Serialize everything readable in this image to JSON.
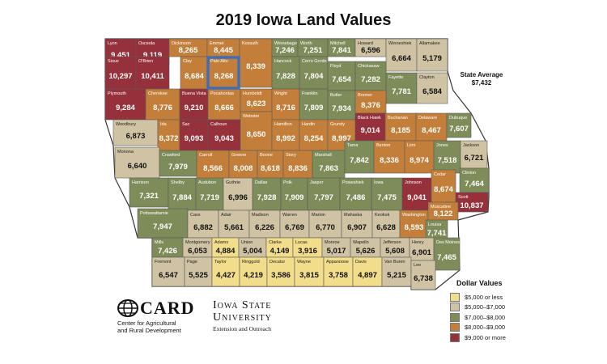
{
  "title": "2019 Iowa Land Values",
  "state_average": {
    "label": "State Average",
    "value": "$7,432"
  },
  "legend": {
    "title": "Dollar Values",
    "items": [
      {
        "label": "$5,000 or less",
        "color": "#f1dd8a"
      },
      {
        "label": "$5,000–$7,000",
        "color": "#cfc3a4"
      },
      {
        "label": "$7,000–$8,000",
        "color": "#7e8c5a"
      },
      {
        "label": "$8,000–$9,000",
        "color": "#c37f3a"
      },
      {
        "label": "$9,000 or more",
        "color": "#96303a"
      }
    ]
  },
  "highlight": {
    "county": "Palo Alto",
    "color": "#3f6eb6"
  },
  "logos": {
    "card": {
      "word": "CARD",
      "line1": "Center for Agricultural",
      "line2": "and Rural Development"
    },
    "isu": {
      "line1": "Iowa State",
      "line2": "University",
      "line3": "Extension and Outreach"
    }
  },
  "counties": [
    {
      "name": "Lyon",
      "value": "9,451",
      "cls": 5
    },
    {
      "name": "Osceola",
      "value": "9,119",
      "cls": 5
    },
    {
      "name": "Dickinson",
      "value": "8,265",
      "cls": 4
    },
    {
      "name": "Emmet",
      "value": "8,445",
      "cls": 4
    },
    {
      "name": "Kossuth",
      "value": "8,339",
      "cls": 4
    },
    {
      "name": "Winnebago",
      "value": "7,246",
      "cls": 3
    },
    {
      "name": "Worth",
      "value": "7,251",
      "cls": 3
    },
    {
      "name": "Mitchell",
      "value": "7,841",
      "cls": 3
    },
    {
      "name": "Howard",
      "value": "6,596",
      "cls": 2
    },
    {
      "name": "Winneshiek",
      "value": "6,664",
      "cls": 2
    },
    {
      "name": "Allamakee",
      "value": "5,179",
      "cls": 2
    },
    {
      "name": "Sioux",
      "value": "10,297",
      "cls": 5
    },
    {
      "name": "O'Brien",
      "value": "10,411",
      "cls": 5
    },
    {
      "name": "Clay",
      "value": "8,684",
      "cls": 4
    },
    {
      "name": "Palo Alto",
      "value": "8,268",
      "cls": 4
    },
    {
      "name": "Hancock",
      "value": "7,828",
      "cls": 3
    },
    {
      "name": "Cerro Gordo",
      "value": "7,804",
      "cls": 3
    },
    {
      "name": "Floyd",
      "value": "7,654",
      "cls": 3
    },
    {
      "name": "Chickasaw",
      "value": "7,282",
      "cls": 3
    },
    {
      "name": "Fayette",
      "value": "7,781",
      "cls": 3
    },
    {
      "name": "Clayton",
      "value": "6,584",
      "cls": 2
    },
    {
      "name": "Plymouth",
      "value": "9,284",
      "cls": 5
    },
    {
      "name": "Cherokee",
      "value": "8,776",
      "cls": 4
    },
    {
      "name": "Buena Vista",
      "value": "9,210",
      "cls": 5
    },
    {
      "name": "Pocahontas",
      "value": "8,666",
      "cls": 4
    },
    {
      "name": "Humboldt",
      "value": "8,623",
      "cls": 4
    },
    {
      "name": "Wright",
      "value": "8,716",
      "cls": 4
    },
    {
      "name": "Franklin",
      "value": "7,809",
      "cls": 3
    },
    {
      "name": "Butler",
      "value": "7,934",
      "cls": 3
    },
    {
      "name": "Bremer",
      "value": "8,376",
      "cls": 4
    },
    {
      "name": "Woodbury",
      "value": "6,873",
      "cls": 2
    },
    {
      "name": "Ida",
      "value": "8,372",
      "cls": 4
    },
    {
      "name": "Sac",
      "value": "9,093",
      "cls": 5
    },
    {
      "name": "Calhoun",
      "value": "9,043",
      "cls": 5
    },
    {
      "name": "Webster",
      "value": "8,650",
      "cls": 4
    },
    {
      "name": "Hamilton",
      "value": "8,992",
      "cls": 4
    },
    {
      "name": "Hardin",
      "value": "8,254",
      "cls": 4
    },
    {
      "name": "Grundy",
      "value": "8,997",
      "cls": 4
    },
    {
      "name": "Black Hawk",
      "value": "9,014",
      "cls": 5
    },
    {
      "name": "Buchanan",
      "value": "8,185",
      "cls": 4
    },
    {
      "name": "Delaware",
      "value": "8,467",
      "cls": 4
    },
    {
      "name": "Dubuque",
      "value": "7,607",
      "cls": 3
    },
    {
      "name": "Monona",
      "value": "6,640",
      "cls": 2
    },
    {
      "name": "Crawford",
      "value": "7,979",
      "cls": 3
    },
    {
      "name": "Carroll",
      "value": "8,566",
      "cls": 4
    },
    {
      "name": "Greene",
      "value": "8,008",
      "cls": 4
    },
    {
      "name": "Boone",
      "value": "8,618",
      "cls": 4
    },
    {
      "name": "Story",
      "value": "8,836",
      "cls": 4
    },
    {
      "name": "Marshall",
      "value": "7,863",
      "cls": 3
    },
    {
      "name": "Tama",
      "value": "7,842",
      "cls": 3
    },
    {
      "name": "Benton",
      "value": "8,336",
      "cls": 4
    },
    {
      "name": "Linn",
      "value": "8,974",
      "cls": 4
    },
    {
      "name": "Jones",
      "value": "7,518",
      "cls": 3
    },
    {
      "name": "Jackson",
      "value": "6,721",
      "cls": 2
    },
    {
      "name": "Clinton",
      "value": "7,464",
      "cls": 3
    },
    {
      "name": "Harrison",
      "value": "7,321",
      "cls": 3
    },
    {
      "name": "Shelby",
      "value": "7,884",
      "cls": 3
    },
    {
      "name": "Audubon",
      "value": "7,719",
      "cls": 3
    },
    {
      "name": "Guthrie",
      "value": "6,996",
      "cls": 2
    },
    {
      "name": "Dallas",
      "value": "7,928",
      "cls": 3
    },
    {
      "name": "Polk",
      "value": "7,909",
      "cls": 3
    },
    {
      "name": "Jasper",
      "value": "7,797",
      "cls": 3
    },
    {
      "name": "Poweshiek",
      "value": "7,486",
      "cls": 3
    },
    {
      "name": "Iowa",
      "value": "7,475",
      "cls": 3
    },
    {
      "name": "Johnson",
      "value": "9,041",
      "cls": 5
    },
    {
      "name": "Cedar",
      "value": "8,674",
      "cls": 4
    },
    {
      "name": "Scott",
      "value": "10,837",
      "cls": 5
    },
    {
      "name": "Pottawattamie",
      "value": "7,947",
      "cls": 3
    },
    {
      "name": "Cass",
      "value": "6,882",
      "cls": 2
    },
    {
      "name": "Adair",
      "value": "5,661",
      "cls": 2
    },
    {
      "name": "Madison",
      "value": "6,226",
      "cls": 2
    },
    {
      "name": "Warren",
      "value": "6,769",
      "cls": 2
    },
    {
      "name": "Marion",
      "value": "6,770",
      "cls": 2
    },
    {
      "name": "Mahaska",
      "value": "6,907",
      "cls": 2
    },
    {
      "name": "Keokuk",
      "value": "6,628",
      "cls": 2
    },
    {
      "name": "Washington",
      "value": "8,593",
      "cls": 4
    },
    {
      "name": "Muscatine",
      "value": "8,122",
      "cls": 4
    },
    {
      "name": "Louisa",
      "value": "7,741",
      "cls": 3
    },
    {
      "name": "Mills",
      "value": "7,426",
      "cls": 3
    },
    {
      "name": "Montgomery",
      "value": "6,053",
      "cls": 2
    },
    {
      "name": "Adams",
      "value": "4,884",
      "cls": 1
    },
    {
      "name": "Union",
      "value": "5,004",
      "cls": 2
    },
    {
      "name": "Clarke",
      "value": "4,149",
      "cls": 1
    },
    {
      "name": "Lucas",
      "value": "3,916",
      "cls": 1
    },
    {
      "name": "Monroe",
      "value": "5,017",
      "cls": 2
    },
    {
      "name": "Wapello",
      "value": "5,626",
      "cls": 2
    },
    {
      "name": "Jefferson",
      "value": "5,608",
      "cls": 2
    },
    {
      "name": "Henry",
      "value": "6,901",
      "cls": 2
    },
    {
      "name": "Des Moines",
      "value": "7,465",
      "cls": 3
    },
    {
      "name": "Fremont",
      "value": "6,547",
      "cls": 2
    },
    {
      "name": "Page",
      "value": "5,525",
      "cls": 2
    },
    {
      "name": "Taylor",
      "value": "4,427",
      "cls": 1
    },
    {
      "name": "Ringgold",
      "value": "4,219",
      "cls": 1
    },
    {
      "name": "Decatur",
      "value": "3,586",
      "cls": 1
    },
    {
      "name": "Wayne",
      "value": "3,815",
      "cls": 1
    },
    {
      "name": "Appanoose",
      "value": "3,758",
      "cls": 1
    },
    {
      "name": "Davis",
      "value": "4,897",
      "cls": 1
    },
    {
      "name": "Van Buren",
      "value": "5,215",
      "cls": 2
    },
    {
      "name": "Lee",
      "value": "6,738",
      "cls": 2
    }
  ]
}
